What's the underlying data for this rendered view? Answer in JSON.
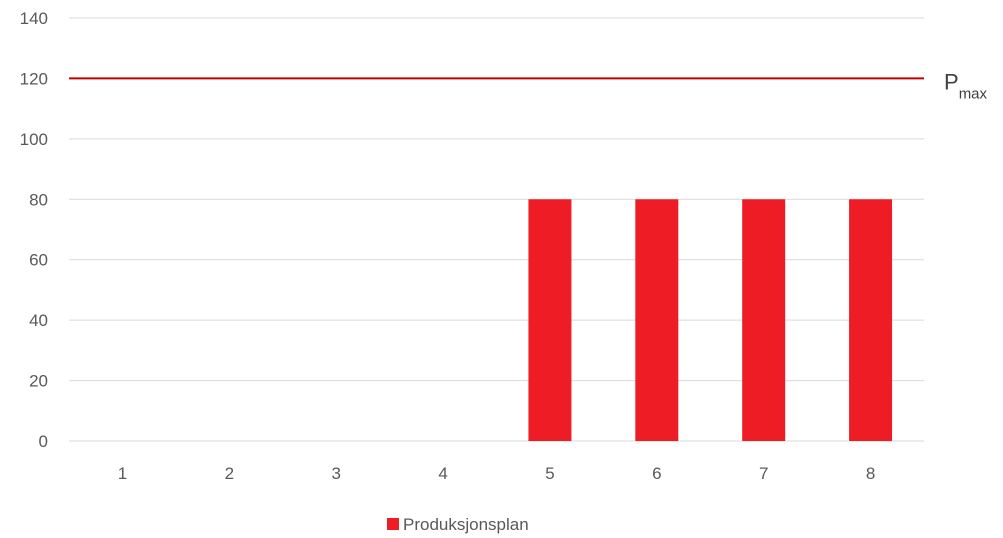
{
  "chart_data": {
    "type": "bar",
    "categories": [
      "1",
      "2",
      "3",
      "4",
      "5",
      "6",
      "7",
      "8"
    ],
    "series": [
      {
        "name": "Produksjonsplan",
        "values": [
          0,
          0,
          0,
          0,
          80,
          80,
          80,
          80
        ],
        "color": "#ee1c24"
      }
    ],
    "ylim": [
      0,
      140
    ],
    "yticks": [
      0,
      20,
      40,
      60,
      80,
      100,
      120,
      140
    ],
    "grid": true,
    "legend_position": "bottom",
    "reference_line": {
      "value": 120,
      "label": "P",
      "label_subscript": "max",
      "color": "#c00000"
    },
    "colors": {
      "grid": "#d9d9d9",
      "axis": "#d9d9d9"
    }
  }
}
